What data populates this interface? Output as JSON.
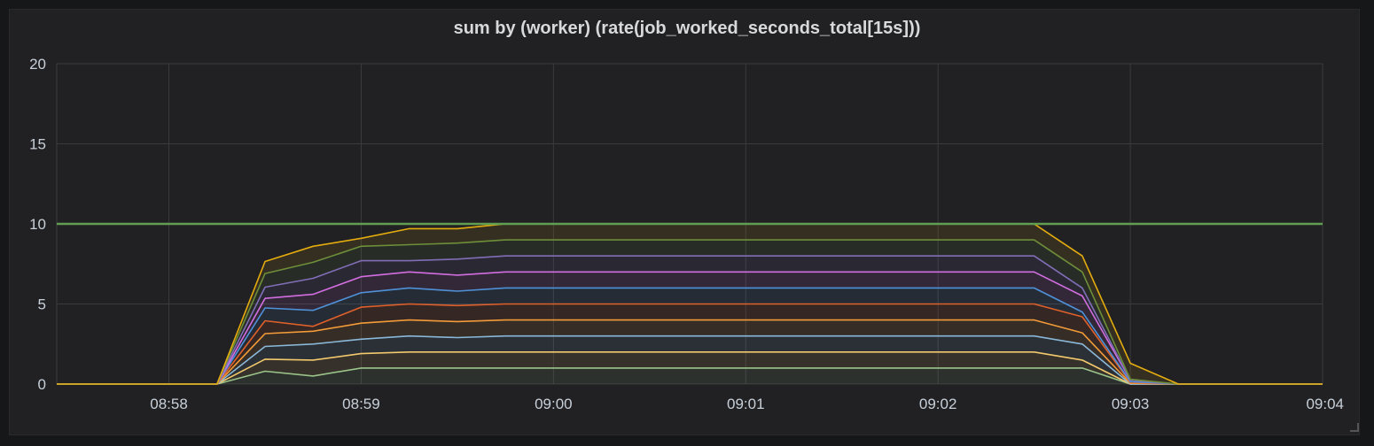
{
  "panel": {
    "title": "sum by (worker) (rate(job_worked_seconds_total[15s]))"
  },
  "chart_data": {
    "type": "area",
    "title": "sum by (worker) (rate(job_worked_seconds_total[15s]))",
    "xlabel": "",
    "ylabel": "",
    "ylim": [
      0,
      20
    ],
    "yticks": [
      "0",
      "5",
      "10",
      "15",
      "20"
    ],
    "xlim": [
      "08:57:25",
      "09:04:00"
    ],
    "xticks": [
      "08:58",
      "08:59",
      "09:00",
      "09:01",
      "09:02",
      "09:03",
      "09:04"
    ],
    "grid": true,
    "stacked": true,
    "threshold": {
      "value": 10,
      "color": "#629e51"
    },
    "x": [
      "08:57:25",
      "08:58:15",
      "08:58:30",
      "08:58:45",
      "08:59:00",
      "08:59:15",
      "08:59:30",
      "08:59:45",
      "09:00:00",
      "09:00:15",
      "09:00:30",
      "09:00:45",
      "09:01:00",
      "09:01:15",
      "09:01:30",
      "09:01:45",
      "09:02:00",
      "09:02:15",
      "09:02:30",
      "09:02:45",
      "09:03:00",
      "09:03:15",
      "09:04:00"
    ],
    "series": [
      {
        "color": "#9ac48a",
        "values": [
          0,
          0,
          0.8,
          0.5,
          1,
          1,
          1,
          1,
          1,
          1,
          1,
          1,
          1,
          1,
          1,
          1,
          1,
          1,
          1,
          1,
          0,
          0,
          0
        ]
      },
      {
        "color": "#f2c96d",
        "values": [
          0,
          0,
          0.75,
          1.0,
          0.9,
          1,
          1,
          1,
          1,
          1,
          1,
          1,
          1,
          1,
          1,
          1,
          1,
          1,
          1,
          0.5,
          0,
          0,
          0
        ]
      },
      {
        "color": "#8ab8d8",
        "values": [
          0,
          0,
          0.8,
          1.0,
          0.9,
          1,
          0.9,
          1,
          1,
          1,
          1,
          1,
          1,
          1,
          1,
          1,
          1,
          1,
          1,
          1.0,
          0,
          0,
          0
        ]
      },
      {
        "color": "#f29b38",
        "values": [
          0,
          0,
          0.8,
          0.8,
          1.0,
          1,
          1.0,
          1,
          1,
          1,
          1,
          1,
          1,
          1,
          1,
          1,
          1,
          1,
          1,
          0.7,
          0.05,
          0,
          0
        ]
      },
      {
        "color": "#e0602a",
        "values": [
          0,
          0,
          0.8,
          0.3,
          1.0,
          1,
          1.0,
          1,
          1,
          1,
          1,
          1,
          1,
          1,
          1,
          1,
          1,
          1,
          1,
          1.0,
          0.05,
          0,
          0
        ]
      },
      {
        "color": "#4f91d8",
        "values": [
          0,
          0,
          0.8,
          1.0,
          0.9,
          1,
          0.9,
          1,
          1,
          1,
          1,
          1,
          1,
          1,
          1,
          1,
          1,
          1,
          1,
          0.3,
          0.05,
          0,
          0
        ]
      },
      {
        "color": "#d26ee0",
        "values": [
          0,
          0,
          0.6,
          1.0,
          1.0,
          1,
          1.0,
          1,
          1,
          1,
          1,
          1,
          1,
          1,
          1,
          1,
          1,
          1,
          1,
          1.0,
          0.1,
          0,
          0
        ]
      },
      {
        "color": "#806eb7",
        "values": [
          0,
          0,
          0.7,
          1.0,
          1.0,
          0.7,
          1.0,
          1,
          1,
          1,
          1,
          1,
          1,
          1,
          1,
          1,
          1,
          1,
          1,
          0.5,
          0,
          0,
          0
        ]
      },
      {
        "color": "#6d8f3a",
        "values": [
          0,
          0,
          0.85,
          1.0,
          0.9,
          1.0,
          1.0,
          1,
          1,
          1,
          1,
          1,
          1,
          1,
          1,
          1,
          1,
          1,
          1,
          1.0,
          0.05,
          0,
          0
        ]
      },
      {
        "color": "#e5ac0e",
        "values": [
          0,
          0,
          0.75,
          1.0,
          0.5,
          1.0,
          0.9,
          1,
          1,
          1,
          1,
          1,
          1,
          1,
          1,
          1,
          1,
          1,
          1,
          1.0,
          1.0,
          0,
          0
        ]
      }
    ]
  }
}
